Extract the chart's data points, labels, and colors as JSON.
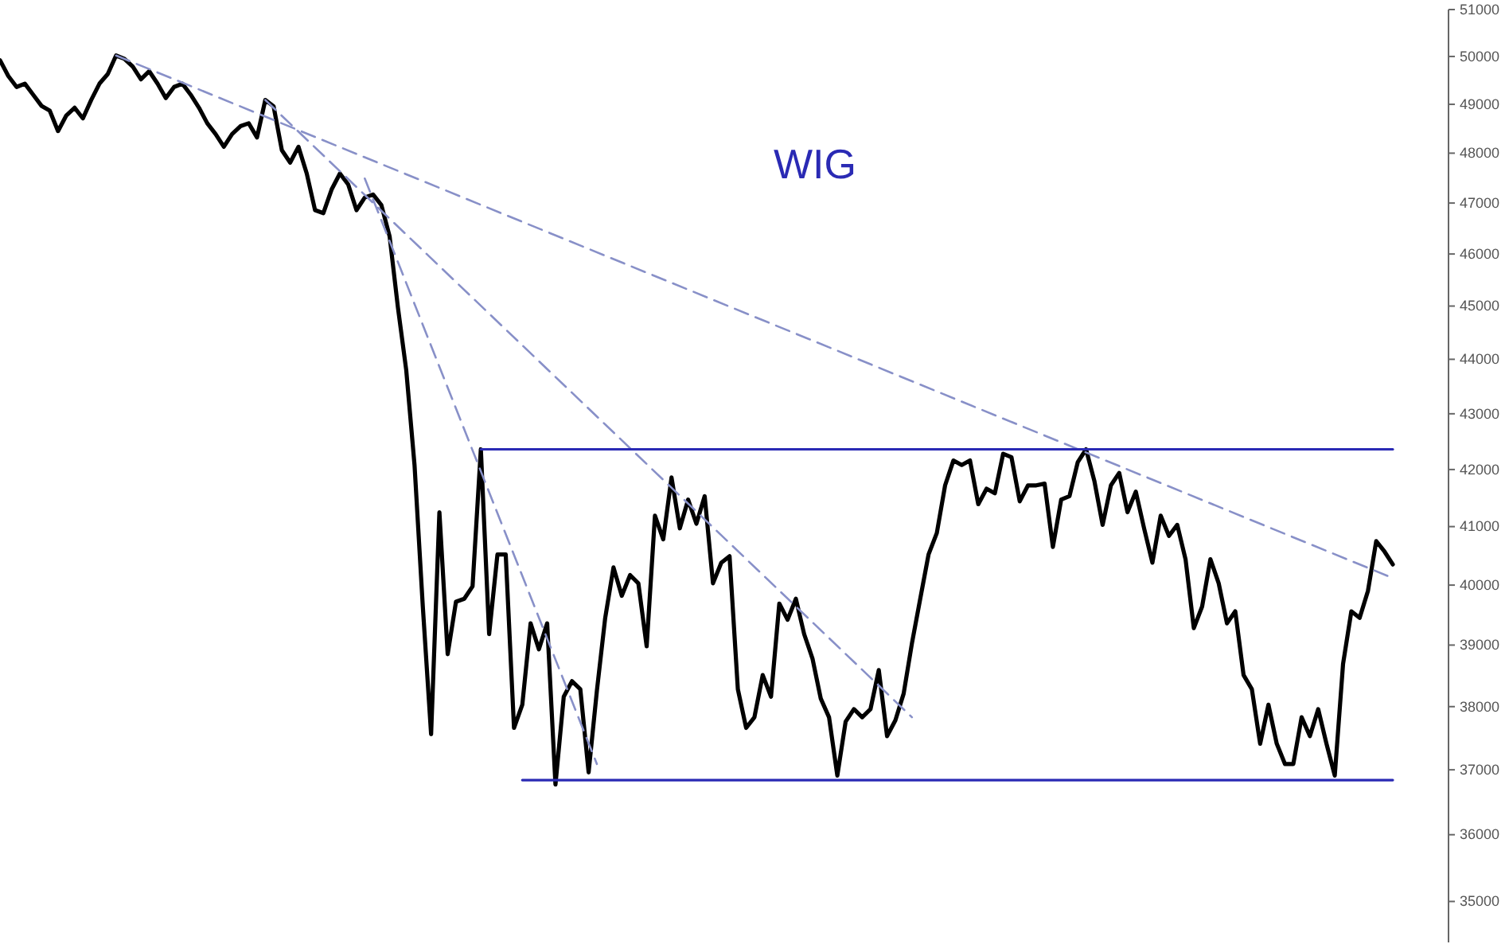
{
  "chart_data": {
    "type": "line",
    "title": "WIG",
    "log": "y",
    "categories": [
      null,
      null,
      null,
      null,
      null,
      null,
      null,
      null,
      null,
      null,
      null,
      null,
      null,
      null,
      null,
      null,
      null,
      null,
      null,
      null,
      null,
      null,
      null,
      null,
      null,
      null,
      null,
      null,
      null,
      null,
      null,
      null,
      null,
      null,
      null,
      null,
      null,
      null,
      null,
      null,
      null,
      null,
      null,
      null,
      null,
      null,
      null,
      null,
      null,
      null,
      null,
      null,
      null,
      null,
      null,
      null,
      null,
      null,
      null,
      null,
      null,
      null,
      null,
      null,
      null,
      null,
      null,
      null,
      null,
      null,
      null,
      null,
      null,
      null,
      null,
      null,
      null,
      null,
      null,
      null,
      null,
      null,
      null,
      null,
      null,
      null,
      null,
      null,
      null,
      null,
      null,
      null,
      null,
      null,
      null,
      null,
      null,
      null,
      null,
      null,
      null,
      null,
      null,
      null,
      null,
      null,
      null,
      null,
      null,
      null,
      null,
      null,
      null,
      null,
      null,
      null,
      null,
      null,
      null,
      null,
      null,
      null,
      null,
      null,
      null,
      null,
      null,
      null,
      null,
      null,
      null,
      null,
      null,
      null,
      null,
      null,
      null,
      null,
      null,
      null,
      null,
      null,
      null,
      null,
      null,
      null,
      null,
      null,
      null,
      null,
      null,
      null,
      null,
      null,
      null,
      null,
      null,
      null,
      null,
      null,
      null,
      null,
      null,
      null,
      null,
      null,
      null,
      null,
      null
    ],
    "ylim": [
      34400,
      51000
    ],
    "yticks": [
      35000,
      36000,
      37000,
      38000,
      39000,
      40000,
      41000,
      42000,
      43000,
      44000,
      45000,
      46000,
      47000,
      48000,
      49000,
      50000,
      51000
    ],
    "tick_labels": "y",
    "series": [
      {
        "color": "#000000",
        "values": [
          49920,
          49590,
          49360,
          49430,
          49200,
          48970,
          48870,
          48450,
          48770,
          48930,
          48710,
          49090,
          49430,
          49630,
          50020,
          49950,
          49790,
          49520,
          49690,
          49430,
          49130,
          49360,
          49430,
          49200,
          48930,
          48610,
          48390,
          48130,
          48390,
          48550,
          48610,
          48320,
          49090,
          48960,
          48060,
          47810,
          48130,
          47590,
          46860,
          46800,
          47270,
          47590,
          47370,
          46860,
          47110,
          47170,
          46960,
          46340,
          44970,
          43800,
          42080,
          39640,
          37560,
          41250,
          38850,
          39720,
          39770,
          39980,
          42360,
          39180,
          40520,
          40520,
          37660,
          38030,
          39360,
          38930,
          39360,
          36770,
          38160,
          38410,
          38280,
          36960,
          38260,
          39450,
          40300,
          39820,
          40170,
          40030,
          38980,
          41190,
          40780,
          41860,
          40970,
          41470,
          41050,
          41530,
          40030,
          40380,
          40490,
          38280,
          37660,
          37830,
          38510,
          38160,
          39690,
          39420,
          39770,
          39180,
          38780,
          38130,
          37830,
          36910,
          37760,
          37960,
          37830,
          37960,
          38590,
          37530,
          37780,
          38210,
          39030,
          39770,
          40520,
          40890,
          41720,
          42160,
          42080,
          42160,
          41390,
          41660,
          41580,
          42280,
          42220,
          41440,
          41720,
          41720,
          41750,
          40650,
          41470,
          41530,
          42130,
          42360,
          41800,
          41030,
          41720,
          41940,
          41250,
          41610,
          40970,
          40380,
          41190,
          40840,
          41030,
          40440,
          39280,
          39640,
          40440,
          40030,
          39360,
          39560,
          38510,
          38280,
          37410,
          38030,
          37410,
          37090,
          37090,
          37830,
          37530,
          37960,
          37410,
          36910,
          38690,
          39560,
          39450,
          39900,
          40750,
          40570,
          40350
        ]
      },
      {
        "color": "#8890c8",
        "line_style": "dashed",
        "values": [
          null,
          null,
          null,
          null,
          null,
          null,
          null,
          null,
          null,
          null,
          null,
          null,
          null,
          null,
          50020,
          null,
          null,
          null,
          null,
          null,
          null,
          null,
          null,
          null,
          null,
          null,
          null,
          null,
          null,
          null,
          null,
          null,
          null,
          null,
          null,
          null,
          null,
          null,
          null,
          null,
          null,
          null,
          null,
          null,
          null,
          null,
          null,
          null,
          null,
          null,
          null,
          null,
          null,
          null,
          null,
          null,
          null,
          null,
          null,
          null,
          null,
          null,
          null,
          null,
          null,
          null,
          null,
          null,
          null,
          null,
          null,
          null,
          null,
          null,
          null,
          null,
          null,
          null,
          null,
          null,
          null,
          null,
          null,
          null,
          null,
          null,
          null,
          null,
          null,
          null,
          null,
          null,
          null,
          null,
          null,
          null,
          null,
          null,
          null,
          null,
          null,
          null,
          null,
          null,
          null,
          null,
          null,
          null,
          null,
          null,
          null,
          null,
          null,
          null,
          null,
          null,
          null,
          null,
          null,
          null,
          null,
          null,
          null,
          null,
          null,
          null,
          null,
          null,
          null,
          null,
          null,
          null,
          null,
          null,
          null,
          null,
          null,
          null,
          null,
          null,
          null,
          null,
          null,
          null,
          null,
          null,
          null,
          null,
          null,
          null,
          null,
          null,
          null,
          null,
          null,
          null,
          null,
          null,
          null,
          null,
          null,
          null,
          null,
          null,
          null,
          null,
          null,
          null,
          40120
        ]
      },
      {
        "color": "#8890c8",
        "line_style": "dashed",
        "values": [
          null,
          null,
          null,
          null,
          null,
          null,
          null,
          null,
          null,
          null,
          null,
          null,
          null,
          null,
          null,
          null,
          null,
          null,
          null,
          null,
          null,
          null,
          null,
          null,
          null,
          null,
          null,
          null,
          null,
          null,
          null,
          null,
          49090,
          null,
          null,
          null,
          null,
          null,
          null,
          null,
          null,
          null,
          null,
          null,
          null,
          null,
          null,
          null,
          null,
          null,
          null,
          null,
          null,
          null,
          null,
          null,
          null,
          null,
          null,
          null,
          null,
          null,
          null,
          null,
          null,
          null,
          null,
          null,
          null,
          null,
          null,
          null,
          null,
          null,
          null,
          null,
          null,
          null,
          null,
          null,
          null,
          null,
          null,
          null,
          null,
          null,
          null,
          null,
          null,
          null,
          null,
          null,
          null,
          null,
          null,
          null,
          null,
          null,
          null,
          null,
          null,
          null,
          null,
          null,
          null,
          null,
          null,
          null,
          null,
          null,
          37830,
          null,
          null,
          null,
          null,
          null,
          null,
          null,
          null,
          null,
          null,
          null,
          null,
          null,
          null,
          null,
          null,
          null,
          null,
          null,
          null,
          null,
          null,
          null,
          null,
          null,
          null,
          null,
          null,
          null,
          null,
          null,
          null,
          null,
          null,
          null,
          null,
          null,
          null,
          null,
          null,
          null,
          null,
          null,
          null,
          null,
          null,
          null,
          null,
          null,
          null,
          null,
          null,
          null,
          null,
          null,
          null,
          null,
          null
        ]
      },
      {
        "color": "#8890c8",
        "line_style": "dashed",
        "values": [
          null,
          null,
          null,
          null,
          null,
          null,
          null,
          null,
          null,
          null,
          null,
          null,
          null,
          null,
          null,
          null,
          null,
          null,
          null,
          null,
          null,
          null,
          null,
          null,
          null,
          null,
          null,
          null,
          null,
          null,
          null,
          null,
          null,
          null,
          null,
          null,
          null,
          null,
          null,
          null,
          null,
          null,
          null,
          null,
          47490,
          null,
          null,
          null,
          null,
          null,
          null,
          null,
          null,
          null,
          null,
          null,
          null,
          null,
          null,
          null,
          null,
          null,
          null,
          null,
          null,
          null,
          null,
          null,
          null,
          null,
          null,
          null,
          37090,
          null,
          null,
          null,
          null,
          null,
          null,
          null,
          null,
          null,
          null,
          null,
          null,
          null,
          null,
          null,
          null,
          null,
          null,
          null,
          null,
          null,
          null,
          null,
          null,
          null,
          null,
          null,
          null,
          null,
          null,
          null,
          null,
          null,
          null,
          null,
          null,
          null,
          null,
          null,
          null,
          null,
          null,
          null,
          null,
          null,
          null,
          null,
          null,
          null,
          null,
          null,
          null,
          null,
          null,
          null,
          null,
          null,
          null,
          null,
          null,
          null,
          null,
          null,
          null,
          null,
          null,
          null,
          null,
          null,
          null,
          null,
          null,
          null,
          null,
          null,
          null,
          null,
          null,
          null,
          null,
          null,
          null,
          null,
          null,
          null,
          null,
          null,
          null,
          null,
          null,
          null,
          null,
          null,
          null,
          null,
          null
        ]
      },
      {
        "color": "#2a2ab4",
        "values": [
          null,
          null,
          null,
          null,
          null,
          null,
          null,
          null,
          null,
          null,
          null,
          null,
          null,
          null,
          null,
          null,
          null,
          null,
          null,
          null,
          null,
          null,
          null,
          null,
          null,
          null,
          null,
          null,
          null,
          null,
          null,
          null,
          null,
          null,
          null,
          null,
          null,
          null,
          null,
          null,
          null,
          null,
          null,
          null,
          null,
          null,
          null,
          null,
          null,
          null,
          null,
          null,
          null,
          null,
          null,
          null,
          null,
          null,
          42360,
          null,
          null,
          null,
          null,
          null,
          null,
          null,
          null,
          null,
          null,
          null,
          null,
          null,
          null,
          null,
          null,
          null,
          null,
          null,
          null,
          null,
          null,
          null,
          null,
          null,
          null,
          null,
          null,
          null,
          null,
          null,
          null,
          null,
          null,
          null,
          null,
          null,
          null,
          null,
          null,
          null,
          null,
          null,
          null,
          null,
          null,
          null,
          null,
          null,
          null,
          null,
          null,
          null,
          null,
          null,
          null,
          null,
          null,
          null,
          null,
          null,
          null,
          null,
          null,
          null,
          null,
          null,
          null,
          null,
          null,
          null,
          null,
          null,
          null,
          null,
          null,
          null,
          null,
          null,
          null,
          null,
          null,
          null,
          null,
          null,
          null,
          null,
          null,
          null,
          null,
          null,
          null,
          null,
          null,
          null,
          null,
          null,
          null,
          null,
          null,
          null,
          null,
          null,
          null,
          null,
          null,
          null,
          null,
          null,
          42360
        ]
      },
      {
        "color": "#2a2ab4",
        "values": [
          null,
          null,
          null,
          null,
          null,
          null,
          null,
          null,
          null,
          null,
          null,
          null,
          null,
          null,
          null,
          null,
          null,
          null,
          null,
          null,
          null,
          null,
          null,
          null,
          null,
          null,
          null,
          null,
          null,
          null,
          null,
          null,
          null,
          null,
          null,
          null,
          null,
          null,
          null,
          null,
          null,
          null,
          null,
          null,
          null,
          null,
          null,
          null,
          null,
          null,
          null,
          null,
          null,
          null,
          null,
          null,
          null,
          null,
          null,
          null,
          null,
          null,
          null,
          36840,
          null,
          null,
          null,
          null,
          null,
          null,
          null,
          null,
          null,
          null,
          null,
          null,
          null,
          null,
          null,
          null,
          null,
          null,
          null,
          null,
          null,
          null,
          null,
          null,
          null,
          null,
          null,
          null,
          null,
          null,
          null,
          null,
          null,
          null,
          null,
          null,
          null,
          null,
          null,
          null,
          null,
          null,
          null,
          null,
          null,
          null,
          null,
          null,
          null,
          null,
          null,
          null,
          null,
          null,
          null,
          null,
          null,
          null,
          null,
          null,
          null,
          null,
          null,
          null,
          null,
          null,
          null,
          null,
          null,
          null,
          null,
          null,
          null,
          null,
          null,
          null,
          null,
          null,
          null,
          null,
          null,
          null,
          null,
          null,
          null,
          null,
          null,
          null,
          null,
          null,
          null,
          null,
          null,
          null,
          null,
          null,
          null,
          null,
          null,
          null,
          null,
          null,
          null,
          null,
          36840
        ]
      }
    ]
  }
}
